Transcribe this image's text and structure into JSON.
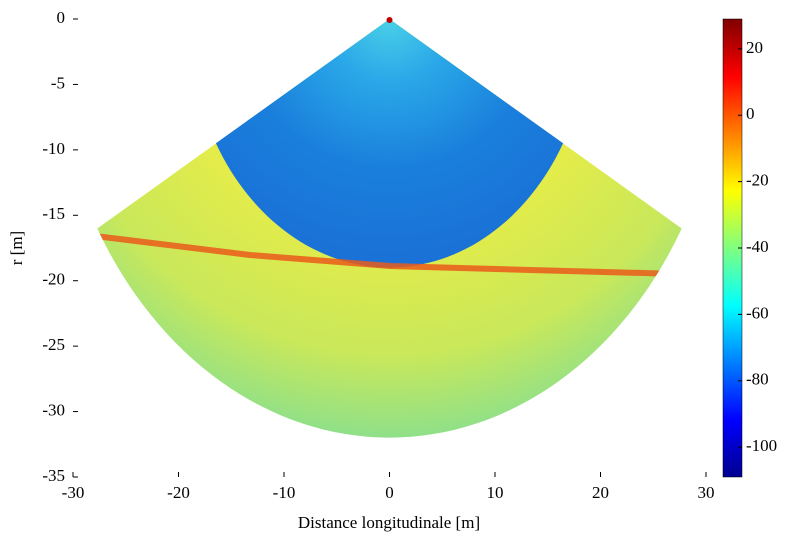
{
  "chart_data": {
    "type": "heatmap",
    "xlabel": "Distance longitudinale [m]",
    "ylabel": "r [m]",
    "xlim": [
      -30,
      30
    ],
    "xticks": [
      -30,
      -20,
      -10,
      0,
      10,
      20,
      30
    ],
    "ylim": [
      -35,
      0
    ],
    "yticks": [
      -35,
      -30,
      -25,
      -20,
      -15,
      -10,
      -5,
      0
    ],
    "colorbar": {
      "lim": [
        -109,
        29
      ],
      "ticks": [
        -100,
        -80,
        -60,
        -40,
        -20,
        0,
        20
      ],
      "colormap": "jet"
    }
  }
}
